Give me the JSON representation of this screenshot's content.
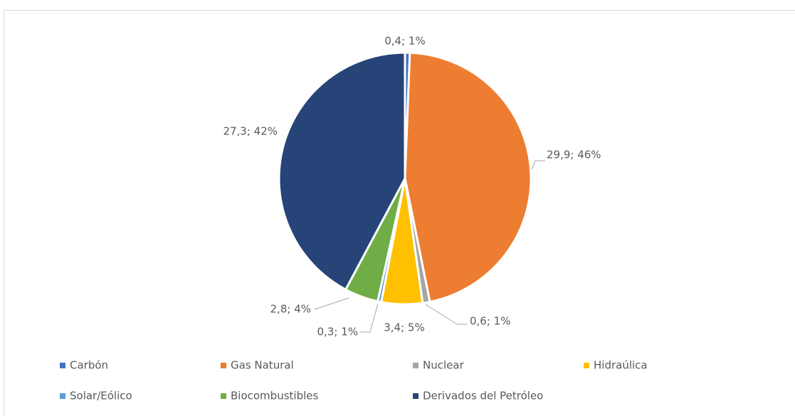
{
  "chart_data": {
    "type": "pie",
    "categories": [
      "Carbón",
      "Gas Natural",
      "Nuclear",
      "Hidraúlica",
      "Solar/Eólico",
      "Biocombustibles",
      "Derivados del Petróleo"
    ],
    "values": [
      0.4,
      29.9,
      0.6,
      3.4,
      0.3,
      2.8,
      27.3
    ],
    "value_labels": [
      "0,4; 1%",
      "29,9; 46%",
      "0,6; 1%",
      "3,4; 5%",
      "0,3; 1%",
      "2,8; 4%",
      "27,3; 42%"
    ],
    "colors": [
      "#4472c4",
      "#ed7d31",
      "#a5a5a5",
      "#ffc000",
      "#5b9bd5",
      "#70ad47",
      "#264478"
    ],
    "legend": "bottom"
  }
}
